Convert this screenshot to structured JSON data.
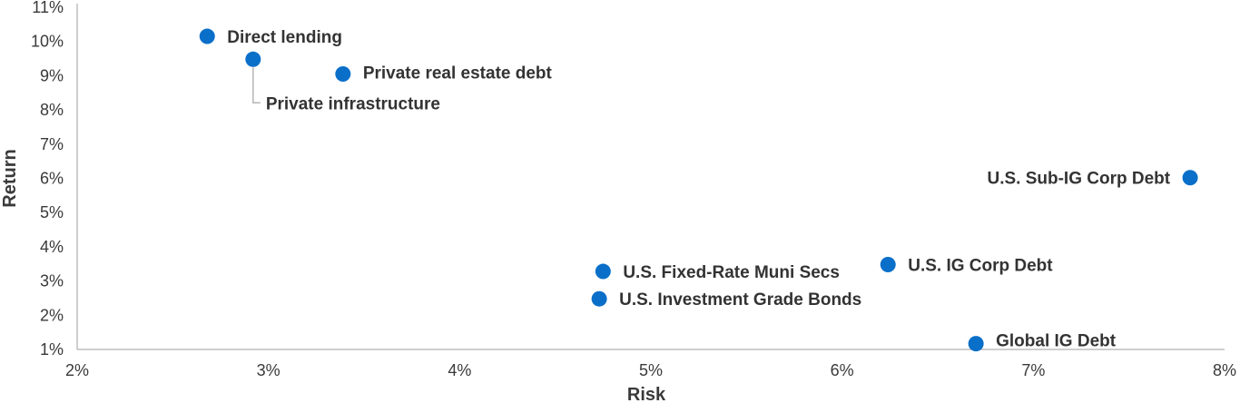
{
  "chart_data": {
    "type": "scatter",
    "xlabel": "Risk",
    "ylabel": "Return",
    "xlim": [
      2,
      8
    ],
    "ylim": [
      1,
      11
    ],
    "x_ticks": [
      2,
      3,
      4,
      5,
      6,
      7,
      8
    ],
    "x_tick_labels": [
      "2%",
      "3%",
      "4%",
      "5%",
      "6%",
      "7%",
      "8%"
    ],
    "y_ticks": [
      1,
      2,
      3,
      4,
      5,
      6,
      7,
      8,
      9,
      10,
      11
    ],
    "y_tick_labels": [
      "1%",
      "2%",
      "3%",
      "4%",
      "5%",
      "6%",
      "7%",
      "8%",
      "9%",
      "10%",
      "11%"
    ],
    "grid": false,
    "point_color": "#0a6fc9",
    "points": [
      {
        "label": "Direct lending",
        "x": 2.68,
        "y": 10.15
      },
      {
        "label": "Private infrastructure",
        "x": 2.92,
        "y": 9.48
      },
      {
        "label": "Private real estate debt",
        "x": 3.39,
        "y": 9.05
      },
      {
        "label": "U.S. Sub-IG Corp Debt",
        "x": 7.82,
        "y": 6.02
      },
      {
        "label": "U.S. Fixed-Rate Muni Secs",
        "x": 4.75,
        "y": 3.28
      },
      {
        "label": "U.S. IG Corp Debt",
        "x": 6.24,
        "y": 3.48
      },
      {
        "label": "U.S. Investment Grade Bonds",
        "x": 4.73,
        "y": 2.48
      },
      {
        "label": "Global IG Debt",
        "x": 6.7,
        "y": 1.17
      }
    ]
  }
}
